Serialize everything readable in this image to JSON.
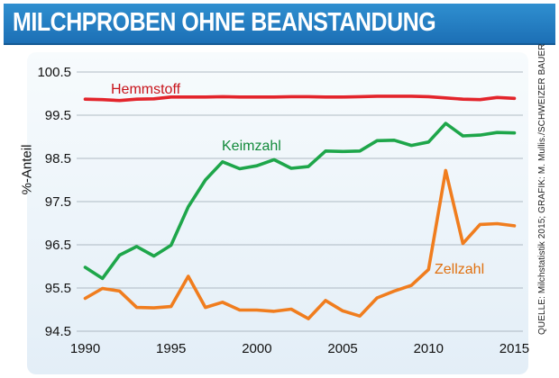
{
  "title": "MILCHPROBEN OHNE BEANSTANDUNG",
  "source": "QUELLE: Milchstatistik 2015; GRAFIK: M. Mullis./SCHWEIZER BAUER",
  "colors": {
    "title_bar": "#1f78be",
    "Hemmstoff": "#e3242b",
    "Keimzahl": "#1ea64a",
    "Zellzahl": "#f07d1e",
    "plot_background": "#e9f2f9"
  },
  "chart_data": {
    "type": "line",
    "title": "MILCHPROBEN OHNE BEANSTANDUNG",
    "xlabel": "",
    "ylabel": "%-Anteil",
    "xlim": [
      1989.5,
      2015.5
    ],
    "ylim": [
      94.5,
      100.5
    ],
    "grid": true,
    "x_ticks": [
      1990,
      1995,
      2000,
      2005,
      2010,
      2015
    ],
    "y_ticks": [
      94.5,
      95.5,
      96.5,
      97.5,
      98.5,
      99.5,
      100.5
    ],
    "y_tick_labels": [
      "94.5",
      "95.5",
      "96.5",
      "97.5",
      "98.5",
      "99.5",
      "100.5"
    ],
    "x": [
      1990,
      1991,
      1992,
      1993,
      1994,
      1995,
      1996,
      1997,
      1998,
      1999,
      2000,
      2001,
      2002,
      2003,
      2004,
      2005,
      2006,
      2007,
      2008,
      2009,
      2010,
      2011,
      2012,
      2013,
      2014,
      2015
    ],
    "series": [
      {
        "name": "Hemmstoff",
        "color": "#e3242b",
        "values": [
          99.87,
          99.86,
          99.84,
          99.87,
          99.88,
          99.92,
          99.92,
          99.92,
          99.93,
          99.92,
          99.92,
          99.92,
          99.93,
          99.93,
          99.92,
          99.92,
          99.93,
          99.94,
          99.94,
          99.94,
          99.93,
          99.9,
          99.87,
          99.86,
          99.91,
          99.89
        ]
      },
      {
        "name": "Keimzahl",
        "color": "#1ea64a",
        "values": [
          95.98,
          95.72,
          96.26,
          96.46,
          96.24,
          96.49,
          97.38,
          98.0,
          98.42,
          98.26,
          98.33,
          98.47,
          98.27,
          98.31,
          98.67,
          98.66,
          98.67,
          98.91,
          98.92,
          98.8,
          98.88,
          99.31,
          99.02,
          99.04,
          99.1,
          99.09
        ]
      },
      {
        "name": "Zellzahl",
        "color": "#f07d1e",
        "values": [
          95.26,
          95.49,
          95.43,
          95.05,
          95.04,
          95.07,
          95.77,
          95.05,
          95.17,
          94.99,
          94.99,
          94.96,
          95.01,
          94.79,
          95.21,
          94.97,
          94.85,
          95.27,
          95.43,
          95.56,
          95.93,
          98.22,
          96.53,
          96.97,
          96.99,
          96.94
        ]
      }
    ],
    "labels": {
      "Hemmstoff": "Hemmstoff",
      "Keimzahl": "Keimzahl",
      "Zellzahl": "Zellzahl"
    }
  }
}
